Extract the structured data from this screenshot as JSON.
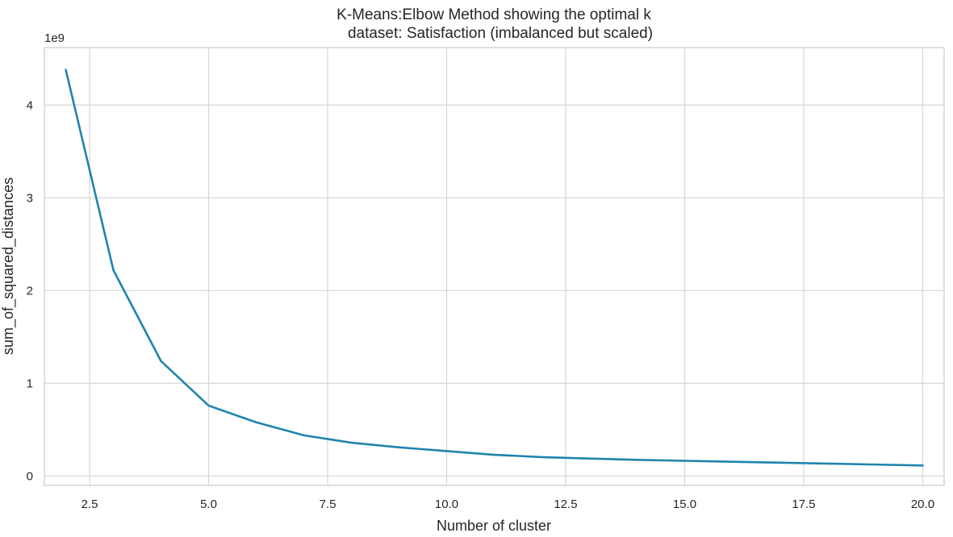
{
  "chart_data": {
    "type": "line",
    "title": "K-Means:Elbow Method showing the optimal k",
    "subtitle": "dataset: Satisfaction (imbalanced but scaled)",
    "xlabel": "Number of cluster",
    "ylabel": "sum_of_squared_distances",
    "y_multiplier_label": "1e9",
    "y_multiplier": 1000000000,
    "xlim": [
      1.55,
      20.45
    ],
    "ylim": [
      -0.1,
      4.62
    ],
    "grid": true,
    "x_ticks": [
      2.5,
      5.0,
      7.5,
      10.0,
      12.5,
      15.0,
      17.5,
      20.0
    ],
    "x_tick_labels": [
      "2.5",
      "5.0",
      "7.5",
      "10.0",
      "12.5",
      "15.0",
      "17.5",
      "20.0"
    ],
    "y_ticks": [
      0,
      1,
      2,
      3,
      4
    ],
    "y_tick_labels": [
      "0",
      "1",
      "2",
      "3",
      "4"
    ],
    "line_color": "#1f84ad",
    "series": [
      {
        "x": [
          2,
          3,
          4,
          5,
          6,
          7,
          8,
          9,
          10,
          11,
          12,
          13,
          14,
          15,
          16,
          17,
          18,
          19,
          20
        ],
        "values": [
          4.38,
          2.22,
          1.24,
          0.76,
          0.58,
          0.44,
          0.36,
          0.31,
          0.27,
          0.23,
          0.205,
          0.19,
          0.175,
          0.165,
          0.155,
          0.145,
          0.135,
          0.125,
          0.115
        ]
      }
    ]
  }
}
